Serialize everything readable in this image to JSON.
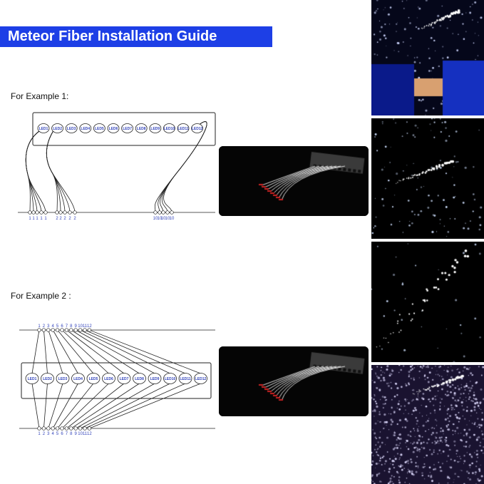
{
  "title": "Meteor Fiber Installation Guide",
  "example1": {
    "label": "For Example 1:",
    "leds": [
      "LED1",
      "LED2",
      "LED3",
      "LED4",
      "LED5",
      "LED6",
      "LED7",
      "LED8",
      "LED9",
      "LED10",
      "LED11",
      "LED12"
    ],
    "fiber_labels": [
      "1",
      "1",
      "1",
      "1",
      "1",
      "2",
      "2",
      "2",
      "2",
      "2",
      "10",
      "10",
      "10",
      "10",
      "10"
    ]
  },
  "example2": {
    "label": "For Example 2 :",
    "leds": [
      "LED1",
      "LED2",
      "LED3",
      "LED4",
      "LED5",
      "LED6",
      "LED7",
      "LED8",
      "LED9",
      "LED10",
      "LED11",
      "LED12"
    ],
    "top_labels": [
      "1",
      "2",
      "3",
      "4",
      "5",
      "6",
      "7",
      "8",
      "9",
      "10",
      "11",
      "12"
    ],
    "bottom_labels": [
      "1",
      "2",
      "3",
      "4",
      "5",
      "6",
      "7",
      "8",
      "9",
      "10",
      "11",
      "12"
    ]
  },
  "colors": {
    "banner": "#1d3fe6",
    "label_blue": "#3344bb"
  },
  "photos": [
    "car-ceiling-starlight",
    "meteor-streak",
    "meteor-diagonal",
    "starry-ceiling-meteor"
  ]
}
